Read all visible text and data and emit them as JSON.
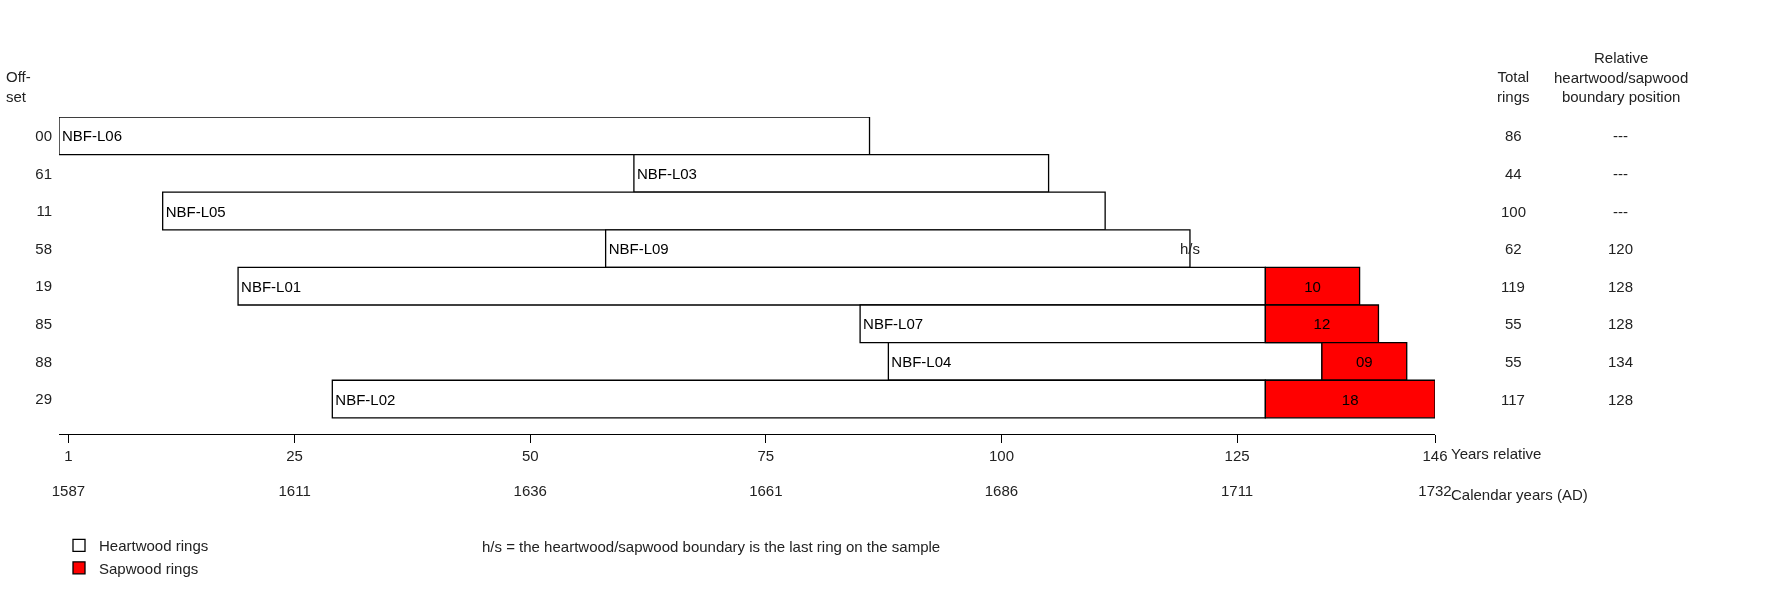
{
  "chart_data": {
    "type": "bar",
    "orientation": "horizontal",
    "ylabel": "Off-\nset",
    "xlabel": "Years relative",
    "x2label": "Calendar years (AD)",
    "categories": [
      "00",
      "61",
      "11",
      "58",
      "19",
      "85",
      "88",
      "29"
    ],
    "series": [
      {
        "name": "Heartwood rings",
        "color": "#ffffff",
        "base": [
          0,
          61,
          11,
          58,
          19,
          85,
          88,
          29
        ],
        "values": [
          86,
          44,
          100,
          62,
          109,
          43,
          46,
          99
        ],
        "value_labels": [
          "NBF-L06",
          "NBF-L03",
          "NBF-L05",
          "NBF-L09",
          "NBF-L01",
          "NBF-L07",
          "NBF-L04",
          "NBF-L02"
        ]
      },
      {
        "name": "Sapwood rings",
        "color": "#ff0000",
        "base": [
          null,
          null,
          null,
          null,
          128,
          128,
          134,
          128
        ],
        "values": [
          null,
          null,
          null,
          null,
          10,
          12,
          9,
          18
        ],
        "value_labels": [
          null,
          null,
          null,
          null,
          "10",
          "12",
          "09",
          "18"
        ]
      }
    ],
    "xlim": [
      0,
      146
    ],
    "xticks": [
      1,
      25,
      50,
      75,
      100,
      125,
      146
    ],
    "x2lim": [
      1586,
      1732
    ],
    "x2ticks": [
      1587,
      1611,
      1636,
      1661,
      1686,
      1711,
      1732
    ],
    "annotations": [
      "Total\nrings",
      "Relative\nheartwood/sapwood\nboundary position",
      "h/s = the heartwood/sapwood boundary is the last ring on the sample",
      "86",
      "44",
      "100",
      "62",
      "119",
      "55",
      "55",
      "117",
      "---",
      "---",
      "---",
      "120",
      "128",
      "128",
      "134",
      "128",
      {
        "text": "h/s",
        "x": 120,
        "y": "58"
      }
    ],
    "legend": "bottom left"
  }
}
